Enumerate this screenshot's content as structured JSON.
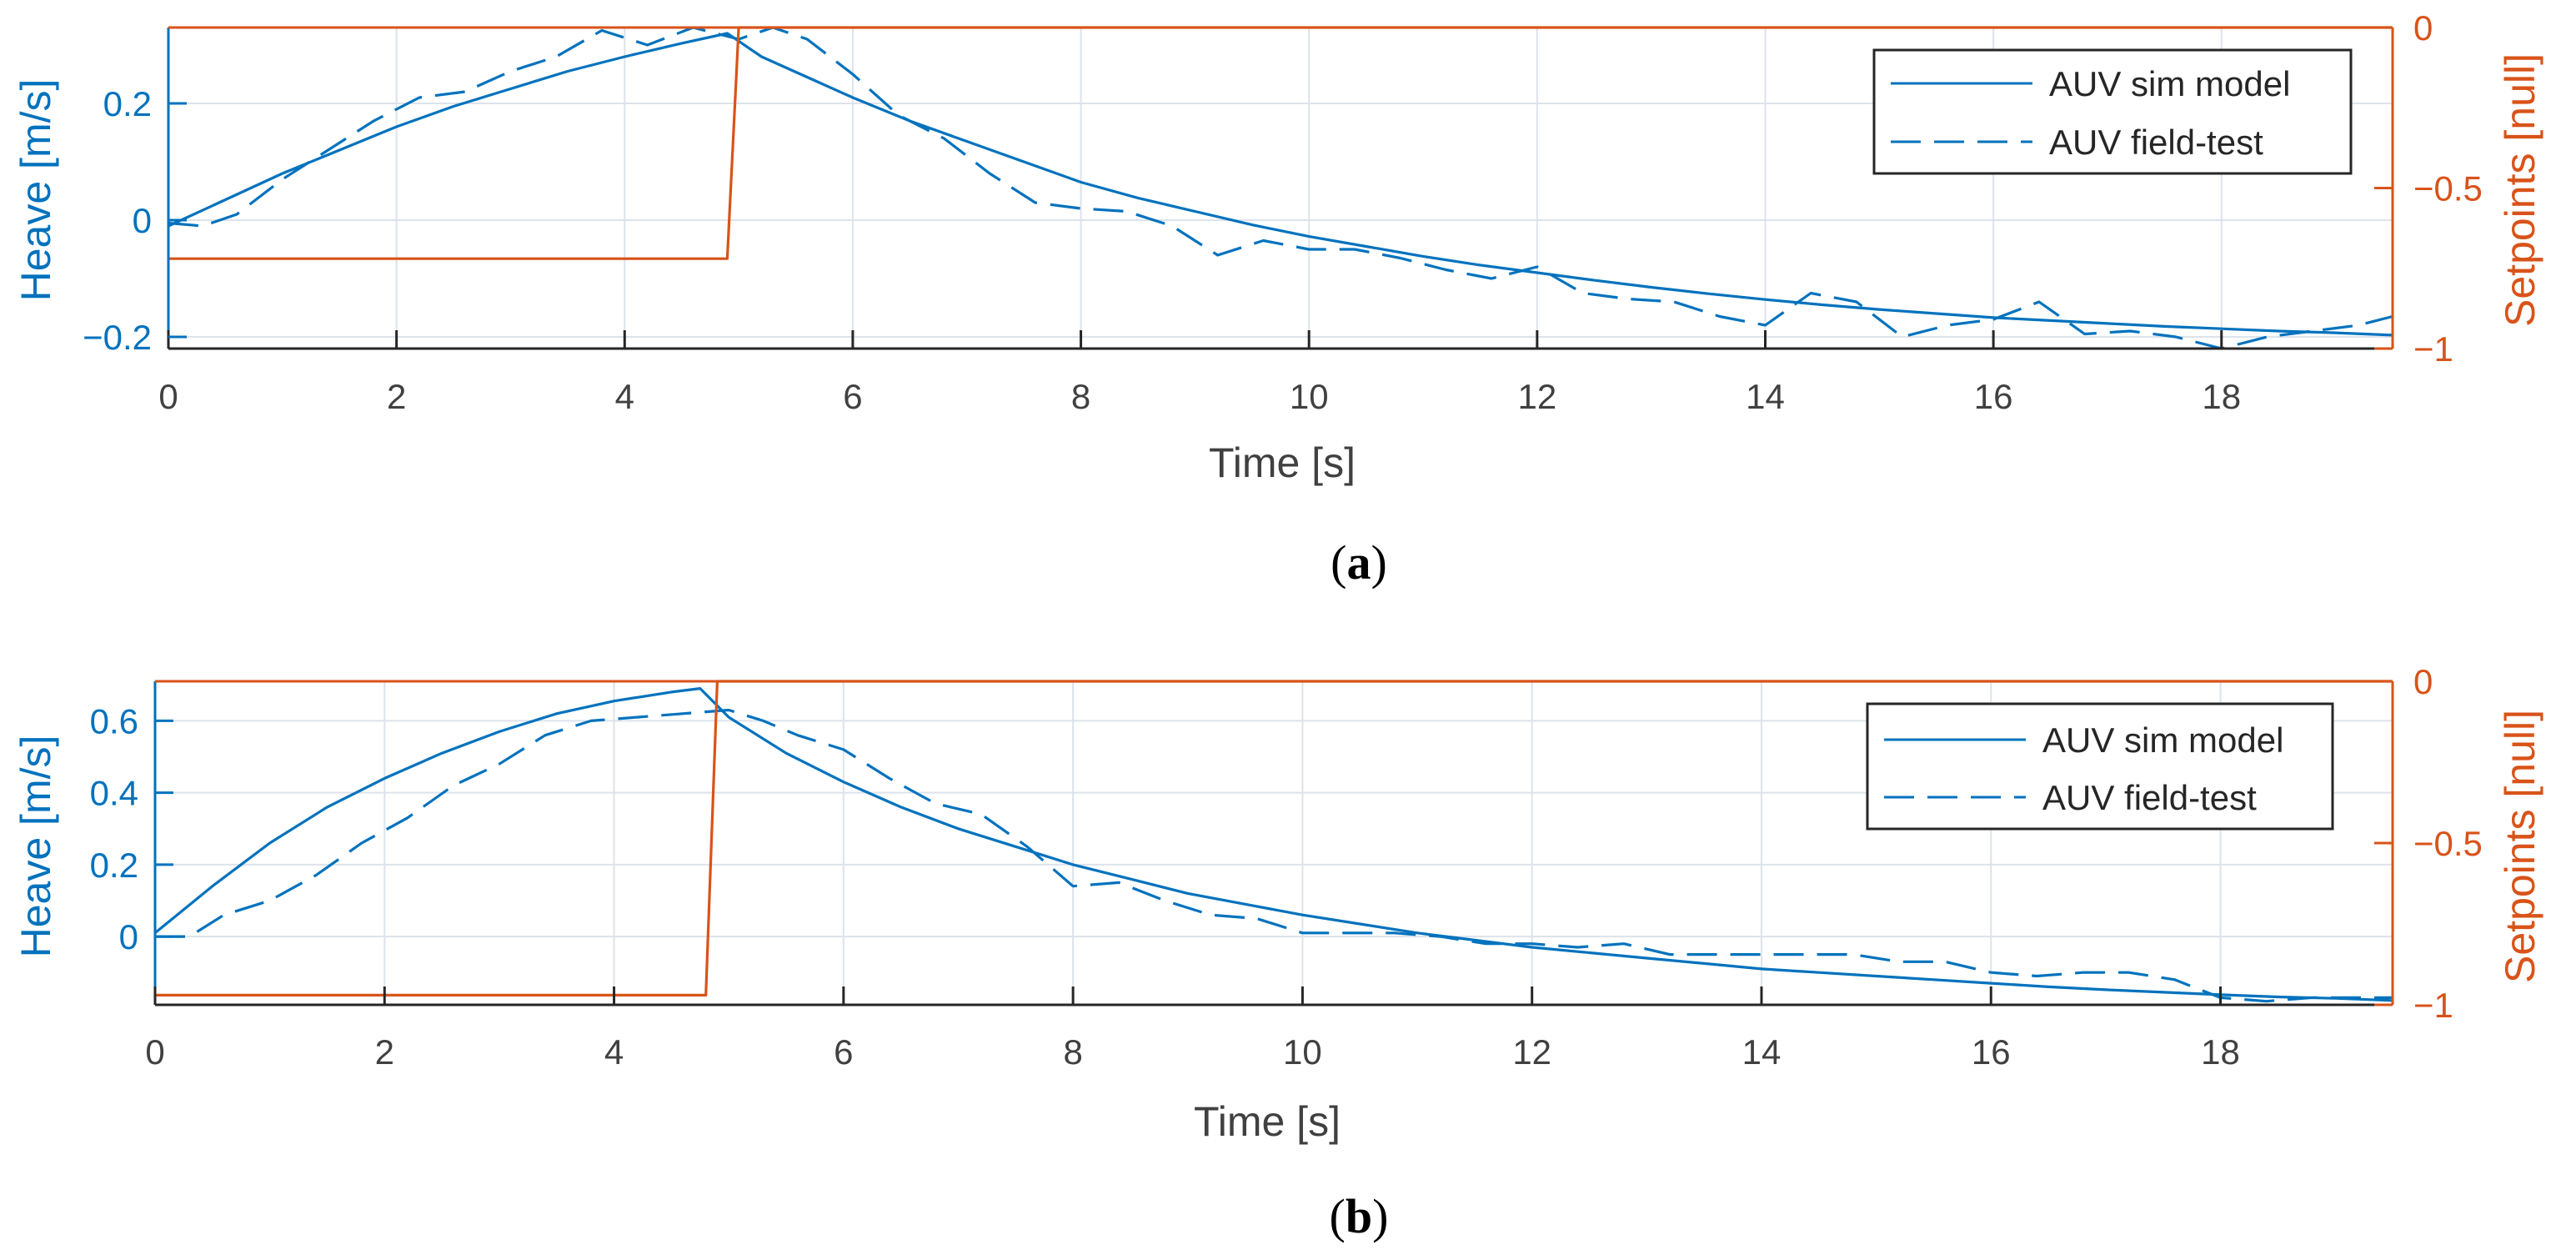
{
  "colors": {
    "left_axis": "#0072BD",
    "right_axis": "#D95319",
    "grid": "#DDE3EC",
    "axis_line": "#262626",
    "tick_text": "#404040"
  },
  "chart_data": [
    {
      "type": "line",
      "panel_label": "(a)",
      "caption_letter": "a",
      "xlabel": "Time [s]",
      "ylabel_left": "Heave [m/s]",
      "ylabel_right": "Setpoints [null]",
      "xlim": [
        0,
        19.5
      ],
      "ylim_left": [
        -0.22,
        0.33
      ],
      "ylim_right": [
        -1,
        0
      ],
      "xticks": [
        0,
        2,
        4,
        6,
        8,
        10,
        12,
        14,
        16,
        18
      ],
      "xtick_labels": [
        "0",
        "2",
        "4",
        "6",
        "8",
        "10",
        "12",
        "14",
        "16",
        "18"
      ],
      "yticks_left": [
        -0.2,
        0,
        0.2
      ],
      "ytick_labels_left": [
        "−0.2",
        "0",
        "0.2"
      ],
      "yticks_right": [
        -1,
        -0.5,
        0
      ],
      "ytick_labels_right": [
        "−1",
        "−0.5",
        "0"
      ],
      "legend": [
        "AUV sim model",
        "AUV field-test"
      ],
      "legend_position": "top-right",
      "series": [
        {
          "name": "AUV sim model",
          "axis": "left",
          "style": "solid",
          "x": [
            0,
            0.5,
            1,
            1.5,
            2,
            2.5,
            3,
            3.5,
            4,
            4.5,
            4.9,
            5.2,
            5.6,
            6,
            6.5,
            7,
            7.5,
            8,
            8.5,
            9,
            9.5,
            10,
            10.5,
            11,
            11.5,
            12,
            12.5,
            13,
            13.5,
            14,
            14.5,
            15,
            15.5,
            16,
            16.5,
            17,
            17.5,
            18,
            18.5,
            19,
            19.5
          ],
          "y": [
            -0.01,
            0.035,
            0.08,
            0.12,
            0.16,
            0.195,
            0.225,
            0.255,
            0.28,
            0.303,
            0.32,
            0.28,
            0.245,
            0.21,
            0.17,
            0.135,
            0.1,
            0.065,
            0.038,
            0.015,
            -0.008,
            -0.028,
            -0.045,
            -0.062,
            -0.077,
            -0.09,
            -0.103,
            -0.115,
            -0.126,
            -0.136,
            -0.145,
            -0.153,
            -0.16,
            -0.167,
            -0.172,
            -0.177,
            -0.182,
            -0.186,
            -0.19,
            -0.193,
            -0.197
          ]
        },
        {
          "name": "AUV field-test",
          "axis": "left",
          "style": "dashed",
          "x": [
            0,
            0.3,
            0.6,
            1,
            1.4,
            1.8,
            2.2,
            2.6,
            3,
            3.4,
            3.8,
            4.2,
            4.6,
            5,
            5.3,
            5.6,
            6,
            6.4,
            6.8,
            7.2,
            7.6,
            8,
            8.4,
            8.8,
            9.2,
            9.6,
            10,
            10.4,
            10.8,
            11.2,
            11.6,
            12,
            12.4,
            12.8,
            13.2,
            13.6,
            14,
            14.4,
            14.8,
            15.2,
            15.6,
            16,
            16.4,
            16.8,
            17.2,
            17.6,
            18,
            18.4,
            18.8,
            19.2,
            19.5
          ],
          "y": [
            -0.005,
            -0.01,
            0.01,
            0.07,
            0.12,
            0.17,
            0.21,
            0.22,
            0.255,
            0.28,
            0.325,
            0.3,
            0.33,
            0.31,
            0.33,
            0.31,
            0.25,
            0.18,
            0.14,
            0.08,
            0.03,
            0.02,
            0.015,
            -0.01,
            -0.06,
            -0.035,
            -0.05,
            -0.05,
            -0.065,
            -0.085,
            -0.1,
            -0.08,
            -0.125,
            -0.135,
            -0.14,
            -0.165,
            -0.18,
            -0.125,
            -0.14,
            -0.2,
            -0.18,
            -0.17,
            -0.14,
            -0.195,
            -0.19,
            -0.2,
            -0.22,
            -0.2,
            -0.19,
            -0.18,
            -0.165
          ]
        },
        {
          "name": "Setpoint",
          "axis": "right",
          "style": "solid",
          "x": [
            0,
            4.9,
            5.0,
            19.5
          ],
          "y": [
            -0.72,
            -0.72,
            0,
            0
          ]
        }
      ]
    },
    {
      "type": "line",
      "panel_label": "(b)",
      "caption_letter": "b",
      "xlabel": "Time [s]",
      "ylabel_left": "Heave [m/s]",
      "ylabel_right": "Setpoints [null]",
      "xlim": [
        0,
        19.5
      ],
      "ylim_left": [
        -0.19,
        0.71
      ],
      "ylim_right": [
        -1,
        0
      ],
      "xticks": [
        0,
        2,
        4,
        6,
        8,
        10,
        12,
        14,
        16,
        18
      ],
      "xtick_labels": [
        "0",
        "2",
        "4",
        "6",
        "8",
        "10",
        "12",
        "14",
        "16",
        "18"
      ],
      "yticks_left": [
        0,
        0.2,
        0.4,
        0.6
      ],
      "ytick_labels_left": [
        "0",
        "0.2",
        "0.4",
        "0.6"
      ],
      "yticks_right": [
        -1,
        -0.5,
        0
      ],
      "ytick_labels_right": [
        "−1",
        "−0.5",
        "0"
      ],
      "legend": [
        "AUV sim model",
        "AUV field-test"
      ],
      "legend_position": "top-right",
      "series": [
        {
          "name": "AUV sim model",
          "axis": "left",
          "style": "solid",
          "x": [
            0,
            0.5,
            1,
            1.5,
            2,
            2.5,
            3,
            3.5,
            4,
            4.5,
            4.75,
            5,
            5.5,
            6,
            6.5,
            7,
            7.5,
            8,
            8.5,
            9,
            9.5,
            10,
            10.5,
            11,
            11.5,
            12,
            12.5,
            13,
            13.5,
            14,
            14.5,
            15,
            15.5,
            16,
            16.5,
            17,
            17.5,
            18,
            18.5,
            19,
            19.5
          ],
          "y": [
            0.01,
            0.14,
            0.26,
            0.36,
            0.44,
            0.51,
            0.57,
            0.62,
            0.655,
            0.68,
            0.69,
            0.61,
            0.51,
            0.43,
            0.36,
            0.3,
            0.25,
            0.2,
            0.16,
            0.12,
            0.09,
            0.06,
            0.035,
            0.01,
            -0.01,
            -0.03,
            -0.045,
            -0.06,
            -0.075,
            -0.09,
            -0.1,
            -0.11,
            -0.12,
            -0.13,
            -0.14,
            -0.148,
            -0.155,
            -0.162,
            -0.168,
            -0.172,
            -0.178
          ]
        },
        {
          "name": "AUV field-test",
          "axis": "left",
          "style": "dashed",
          "x": [
            0,
            0.3,
            0.6,
            1,
            1.4,
            1.8,
            2.2,
            2.6,
            3,
            3.4,
            3.8,
            4.2,
            4.6,
            5,
            5.3,
            5.6,
            6,
            6.4,
            6.8,
            7.2,
            7.6,
            8,
            8.4,
            8.8,
            9.2,
            9.6,
            10,
            10.4,
            10.8,
            11.2,
            11.6,
            12,
            12.4,
            12.8,
            13.2,
            13.6,
            14,
            14.4,
            14.8,
            15.2,
            15.6,
            16,
            16.4,
            16.8,
            17.2,
            17.6,
            18,
            18.4,
            18.8,
            19.2,
            19.5
          ],
          "y": [
            0.0,
            0.0,
            0.06,
            0.1,
            0.17,
            0.26,
            0.33,
            0.42,
            0.48,
            0.56,
            0.6,
            0.61,
            0.62,
            0.63,
            0.6,
            0.56,
            0.52,
            0.44,
            0.37,
            0.34,
            0.25,
            0.14,
            0.15,
            0.1,
            0.06,
            0.05,
            0.01,
            0.01,
            0.01,
            0.0,
            -0.02,
            -0.02,
            -0.03,
            -0.02,
            -0.05,
            -0.05,
            -0.05,
            -0.05,
            -0.05,
            -0.07,
            -0.07,
            -0.1,
            -0.11,
            -0.1,
            -0.1,
            -0.12,
            -0.17,
            -0.18,
            -0.17,
            -0.17,
            -0.17
          ]
        },
        {
          "name": "Setpoint",
          "axis": "right",
          "style": "solid",
          "x": [
            0,
            4.8,
            4.9,
            19.5
          ],
          "y": [
            -0.97,
            -0.97,
            0,
            0
          ]
        }
      ]
    }
  ]
}
